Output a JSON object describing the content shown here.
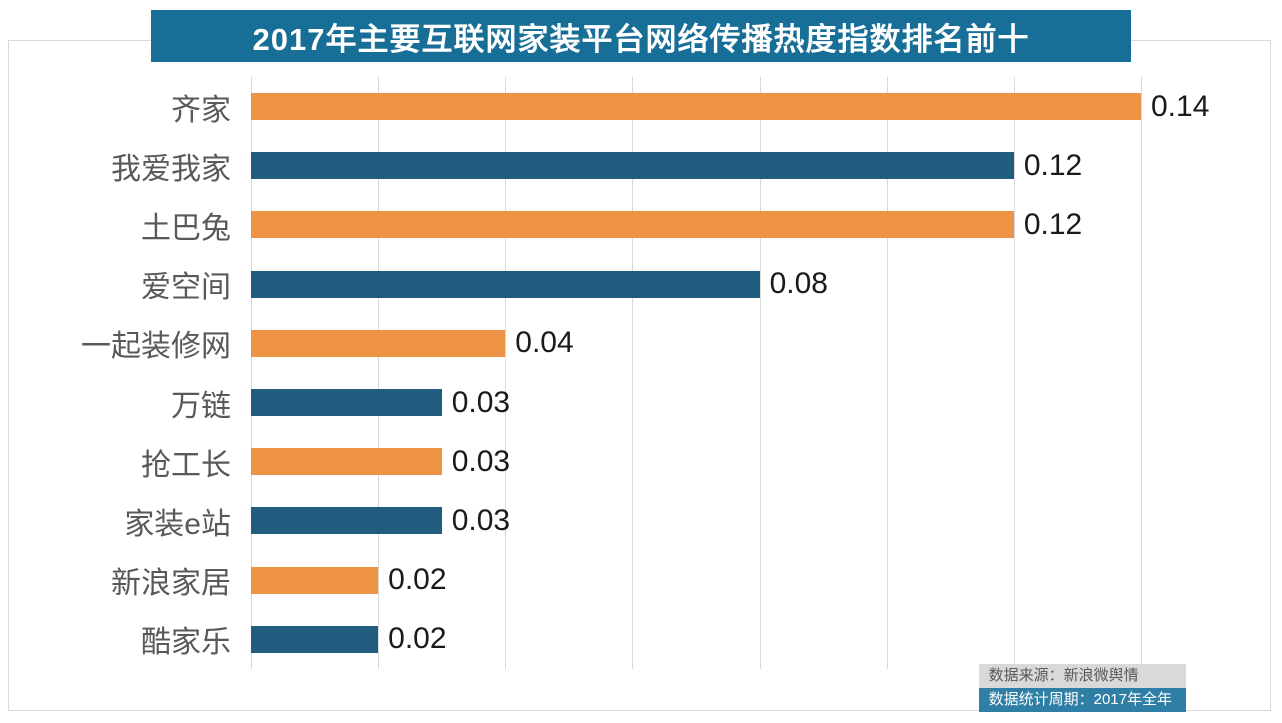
{
  "title": "2017年主要互联网家装平台网络传播热度指数排名前十",
  "chart_data": {
    "type": "bar",
    "orientation": "horizontal",
    "title": "2017年主要互联网家装平台网络传播热度指数排名前十",
    "categories": [
      "齐家",
      "我爱我家",
      "土巴兔",
      "爱空间",
      "一起装修网",
      "万链",
      "抢工长",
      "家装e站",
      "新浪家居",
      "酷家乐"
    ],
    "values": [
      0.14,
      0.12,
      0.12,
      0.08,
      0.04,
      0.03,
      0.03,
      0.03,
      0.02,
      0.02
    ],
    "value_labels": [
      "0.14",
      "0.12",
      "0.12",
      "0.08",
      "0.04",
      "0.03",
      "0.03",
      "0.03",
      "0.02",
      "0.02"
    ],
    "bar_colors": [
      "orange",
      "blue",
      "orange",
      "blue",
      "orange",
      "blue",
      "orange",
      "blue",
      "orange",
      "blue"
    ],
    "xlim": [
      0,
      0.14
    ],
    "grid_interval": 0.02,
    "grid_on": true,
    "legend_position": "none",
    "xlabel": "",
    "ylabel": ""
  },
  "footer": {
    "source": "数据来源：新浪微舆情",
    "period": "数据统计周期：2017年全年"
  },
  "colors": {
    "orange": "#EE9245",
    "blue": "#1F5C7D",
    "banner": "#176E96",
    "grid": "#D9D9D9",
    "label": "#595959",
    "value": "#1A1A1A",
    "footer_source_bg": "#D9D9D9",
    "footer_source_text": "#595959",
    "footer_period_bg": "#2E7EA6",
    "footer_period_text": "#FFFFFF"
  }
}
